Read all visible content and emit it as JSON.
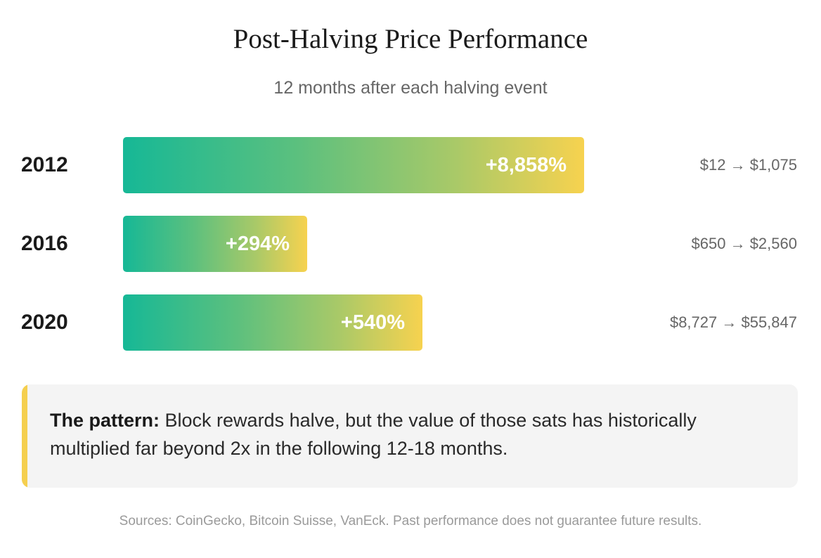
{
  "header": {
    "title": "Post-Halving Price Performance",
    "subtitle": "12 months after each halving event"
  },
  "chart_data": {
    "type": "bar",
    "orientation": "horizontal",
    "title": "Post-Halving Price Performance",
    "subtitle": "12 months after each halving event",
    "categories": [
      "2012",
      "2016",
      "2020"
    ],
    "values": [
      8858,
      294,
      540
    ],
    "value_labels": [
      "+8,858%",
      "+294%",
      "+540%"
    ],
    "price_ranges": [
      "$12 → $1,075",
      "$650 → $2,560",
      "$8,727 → $55,847"
    ],
    "bar_fill_fractions": [
      1.0,
      0.4,
      0.65
    ],
    "gradient_colors": [
      "#16b896",
      "#5cc07e",
      "#a9c968",
      "#f7d24f"
    ],
    "grid": false,
    "legend": "none"
  },
  "callout": {
    "bold": "The pattern:",
    "text": " Block rewards halve, but the value of those sats has historically multiplied far beyond 2x in the following 12-18 months.",
    "accent_color": "#f5cf4f"
  },
  "footer": {
    "sources": "Sources: CoinGecko, Bitcoin Suisse, VanEck. Past performance does not guarantee future results."
  }
}
